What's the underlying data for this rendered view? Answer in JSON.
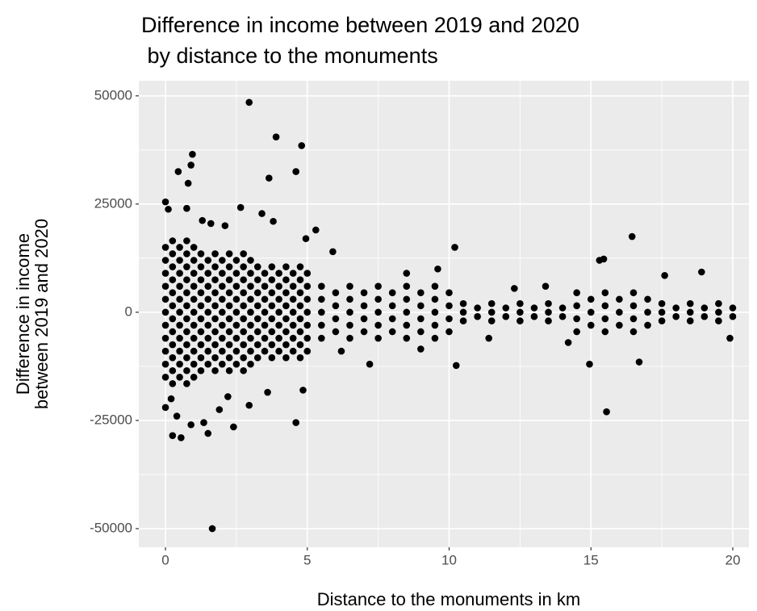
{
  "chart_data": {
    "type": "scatter",
    "title": [
      "Difference in income between 2019 and 2020",
      " by distance to the monuments"
    ],
    "x_label": "Distance to the monuments in km",
    "y_label": [
      "Difference in income",
      "between 2019 and 2020"
    ],
    "color": "#000000",
    "background": "#ebebeb",
    "grid": true,
    "xlim": [
      -0.94,
      20.57
    ],
    "ylim": [
      -54300,
      53500
    ],
    "xticks": [
      0,
      5,
      10,
      15,
      20
    ],
    "yticks": [
      -50000,
      -25000,
      0,
      25000,
      50000
    ],
    "x_minor_breaks": [
      2.5,
      7.5,
      12.5,
      17.5
    ],
    "y_minor_breaks": [
      -37500,
      -12500,
      12500,
      37500
    ],
    "x": [
      0,
      0,
      0,
      0,
      0,
      0,
      0,
      0,
      0,
      0,
      0,
      0.25,
      0.25,
      0.25,
      0.25,
      0.25,
      0.25,
      0.25,
      0.25,
      0.25,
      0.25,
      0.25,
      0.25,
      0.5,
      0.5,
      0.5,
      0.5,
      0.5,
      0.5,
      0.5,
      0.5,
      0.5,
      0.5,
      0.5,
      0.75,
      0.75,
      0.75,
      0.75,
      0.75,
      0.75,
      0.75,
      0.75,
      0.75,
      0.75,
      0.75,
      0.75,
      1,
      1,
      1,
      1,
      1,
      1,
      1,
      1,
      1,
      1,
      1,
      1.25,
      1.25,
      1.25,
      1.25,
      1.25,
      1.25,
      1.25,
      1.25,
      1.25,
      1.25,
      1.5,
      1.5,
      1.5,
      1.5,
      1.5,
      1.5,
      1.5,
      1.5,
      1.5,
      1.75,
      1.75,
      1.75,
      1.75,
      1.75,
      1.75,
      1.75,
      1.75,
      1.75,
      1.75,
      2,
      2,
      2,
      2,
      2,
      2,
      2,
      2,
      2,
      2.25,
      2.25,
      2.25,
      2.25,
      2.25,
      2.25,
      2.25,
      2.25,
      2.25,
      2.25,
      2.5,
      2.5,
      2.5,
      2.5,
      2.5,
      2.5,
      2.5,
      2.5,
      2.5,
      2.75,
      2.75,
      2.75,
      2.75,
      2.75,
      2.75,
      2.75,
      2.75,
      2.75,
      2.75,
      3,
      3,
      3,
      3,
      3,
      3,
      3,
      3,
      3,
      3.25,
      3.25,
      3.25,
      3.25,
      3.25,
      3.25,
      3.25,
      3.25,
      3.5,
      3.5,
      3.5,
      3.5,
      3.5,
      3.5,
      3.5,
      3.75,
      3.75,
      3.75,
      3.75,
      3.75,
      3.75,
      3.75,
      3.75,
      4,
      4,
      4,
      4,
      4,
      4,
      4,
      4.25,
      4.25,
      4.25,
      4.25,
      4.25,
      4.25,
      4.25,
      4.25,
      4.5,
      4.5,
      4.5,
      4.5,
      4.5,
      4.5,
      4.5,
      4.75,
      4.75,
      4.75,
      4.75,
      4.75,
      4.75,
      4.75,
      4.75,
      5,
      5,
      5,
      5,
      5,
      5,
      5,
      5.5,
      5.5,
      5.5,
      5.5,
      5.5,
      6,
      6,
      6,
      6,
      6.5,
      6.5,
      6.5,
      6.5,
      6.5,
      7,
      7,
      7,
      7,
      7.5,
      7.5,
      7.5,
      7.5,
      7.5,
      8,
      8,
      8,
      8,
      8.5,
      8.5,
      8.5,
      8.5,
      8.5,
      9,
      9,
      9,
      9,
      9.5,
      9.5,
      9.5,
      9.5,
      9.5,
      10,
      10,
      10,
      10,
      10.5,
      10.5,
      10.5,
      11,
      11,
      11.5,
      11.5,
      11.5,
      12,
      12,
      12.5,
      12.5,
      12.5,
      13,
      13,
      13.5,
      13.5,
      13.5,
      14,
      14,
      14.5,
      14.5,
      14.5,
      14.5,
      15,
      15,
      15,
      15.5,
      15.5,
      15.5,
      15.5,
      16,
      16,
      16,
      16.5,
      16.5,
      16.5,
      16.5,
      17,
      17,
      17,
      17.5,
      17.5,
      17.5,
      18,
      18,
      18.5,
      18.5,
      18.5,
      19,
      19,
      19.5,
      19.5,
      19.5,
      20,
      20,
      2.95,
      3.9,
      4.8,
      0.95,
      0.9,
      0.45,
      4.6,
      3.65,
      0.8,
      0,
      0.1,
      2.65,
      0.75,
      3.4,
      1.3,
      3.8,
      1.6,
      2.1,
      5.3,
      4.95,
      16.45,
      10.2,
      5.9,
      15.3,
      15.45,
      18.9,
      17.6,
      9.6,
      8.5,
      0.2,
      0,
      0.25,
      0.55,
      0.9,
      1.35,
      1.5,
      2.4,
      2.2,
      2.95,
      3.6,
      4.6,
      4.85,
      1.65,
      15.55,
      10.25,
      14.95,
      16.7,
      7.2,
      1.9,
      0.4,
      12.3,
      13.4,
      14.2,
      19.9,
      6.2,
      9,
      11.4
    ],
    "values": [
      -15000,
      -12000,
      -9000,
      -6000,
      -3000,
      0,
      3000,
      6000,
      9000,
      12000,
      15000,
      -16500,
      -13500,
      -10500,
      -7500,
      -4500,
      -1500,
      1500,
      4500,
      7500,
      10500,
      13500,
      16500,
      -15000,
      -12000,
      -9000,
      -6000,
      -3000,
      0,
      3000,
      6000,
      9000,
      12000,
      15000,
      -16500,
      -13500,
      -10500,
      -7500,
      -4500,
      -1500,
      1500,
      4500,
      7500,
      10500,
      13500,
      16500,
      -15000,
      -12000,
      -9000,
      -6000,
      -3000,
      0,
      3000,
      6000,
      9000,
      12000,
      15000,
      -13500,
      -10500,
      -7500,
      -4500,
      -1500,
      1500,
      4500,
      7500,
      10500,
      13500,
      -12000,
      -9000,
      -6000,
      -3000,
      0,
      3000,
      6000,
      9000,
      12000,
      -13500,
      -10500,
      -7500,
      -4500,
      -1500,
      1500,
      4500,
      7500,
      10500,
      13500,
      -12000,
      -9000,
      -6000,
      -3000,
      0,
      3000,
      6000,
      9000,
      12000,
      -13500,
      -10500,
      -7500,
      -4500,
      -1500,
      1500,
      4500,
      7500,
      10500,
      13500,
      -12000,
      -9000,
      -6000,
      -3000,
      0,
      3000,
      6000,
      9000,
      12000,
      -13500,
      -10500,
      -7500,
      -4500,
      -1500,
      1500,
      4500,
      7500,
      10500,
      13500,
      -12000,
      -9000,
      -6000,
      -3000,
      0,
      3000,
      6000,
      9000,
      12000,
      -10500,
      -7500,
      -4500,
      -1500,
      1500,
      4500,
      7500,
      10500,
      -9000,
      -6000,
      -3000,
      0,
      3000,
      6000,
      9000,
      -10500,
      -7500,
      -4500,
      -1500,
      1500,
      4500,
      7500,
      10500,
      -9000,
      -6000,
      -3000,
      0,
      3000,
      6000,
      9000,
      -10500,
      -7500,
      -4500,
      -1500,
      1500,
      4500,
      7500,
      10500,
      -9000,
      -6000,
      -3000,
      0,
      3000,
      6000,
      9000,
      -10500,
      -7500,
      -4500,
      -1500,
      1500,
      4500,
      7500,
      10500,
      -9000,
      -6000,
      -3000,
      0,
      3000,
      6000,
      9000,
      -6000,
      -3000,
      0,
      3000,
      6000,
      -4500,
      -1500,
      1500,
      4500,
      -6000,
      -3000,
      0,
      3000,
      6000,
      -4500,
      -1500,
      1500,
      4500,
      -6000,
      -3000,
      0,
      3000,
      6000,
      -4500,
      -1500,
      1500,
      4500,
      -6000,
      -3000,
      0,
      3000,
      6000,
      -4500,
      -1500,
      1500,
      4500,
      -6000,
      -3000,
      0,
      3000,
      6000,
      -4500,
      -1500,
      1500,
      4500,
      -2000,
      0,
      2000,
      -1000,
      1000,
      -2000,
      0,
      2000,
      -1000,
      1000,
      -2000,
      0,
      2000,
      -1000,
      1000,
      -2000,
      0,
      2000,
      -1000,
      1000,
      -4500,
      -1500,
      1500,
      4500,
      -3000,
      0,
      3000,
      -4500,
      -1500,
      1500,
      4500,
      -3000,
      0,
      3000,
      -4500,
      -1500,
      1500,
      4500,
      -3000,
      0,
      3000,
      -2000,
      0,
      2000,
      -1000,
      1000,
      -2000,
      0,
      2000,
      -1000,
      1000,
      -2000,
      0,
      2000,
      -1000,
      1000,
      48500,
      40500,
      38500,
      36500,
      34000,
      32500,
      32500,
      31000,
      29800,
      25500,
      23800,
      24200,
      24000,
      22800,
      21200,
      21000,
      20500,
      20000,
      19000,
      17000,
      17500,
      15000,
      14000,
      12000,
      12300,
      9300,
      8500,
      10000,
      9000,
      -20000,
      -22000,
      -28500,
      -29000,
      -26000,
      -25500,
      -28000,
      -26500,
      -19500,
      -21500,
      -18500,
      -25500,
      -18000,
      -50000,
      -23000,
      -12300,
      -12000,
      -11500,
      -12000,
      -22500,
      -24000,
      5500,
      6000,
      -7000,
      -6000,
      -9000,
      -8500,
      -6000
    ]
  }
}
